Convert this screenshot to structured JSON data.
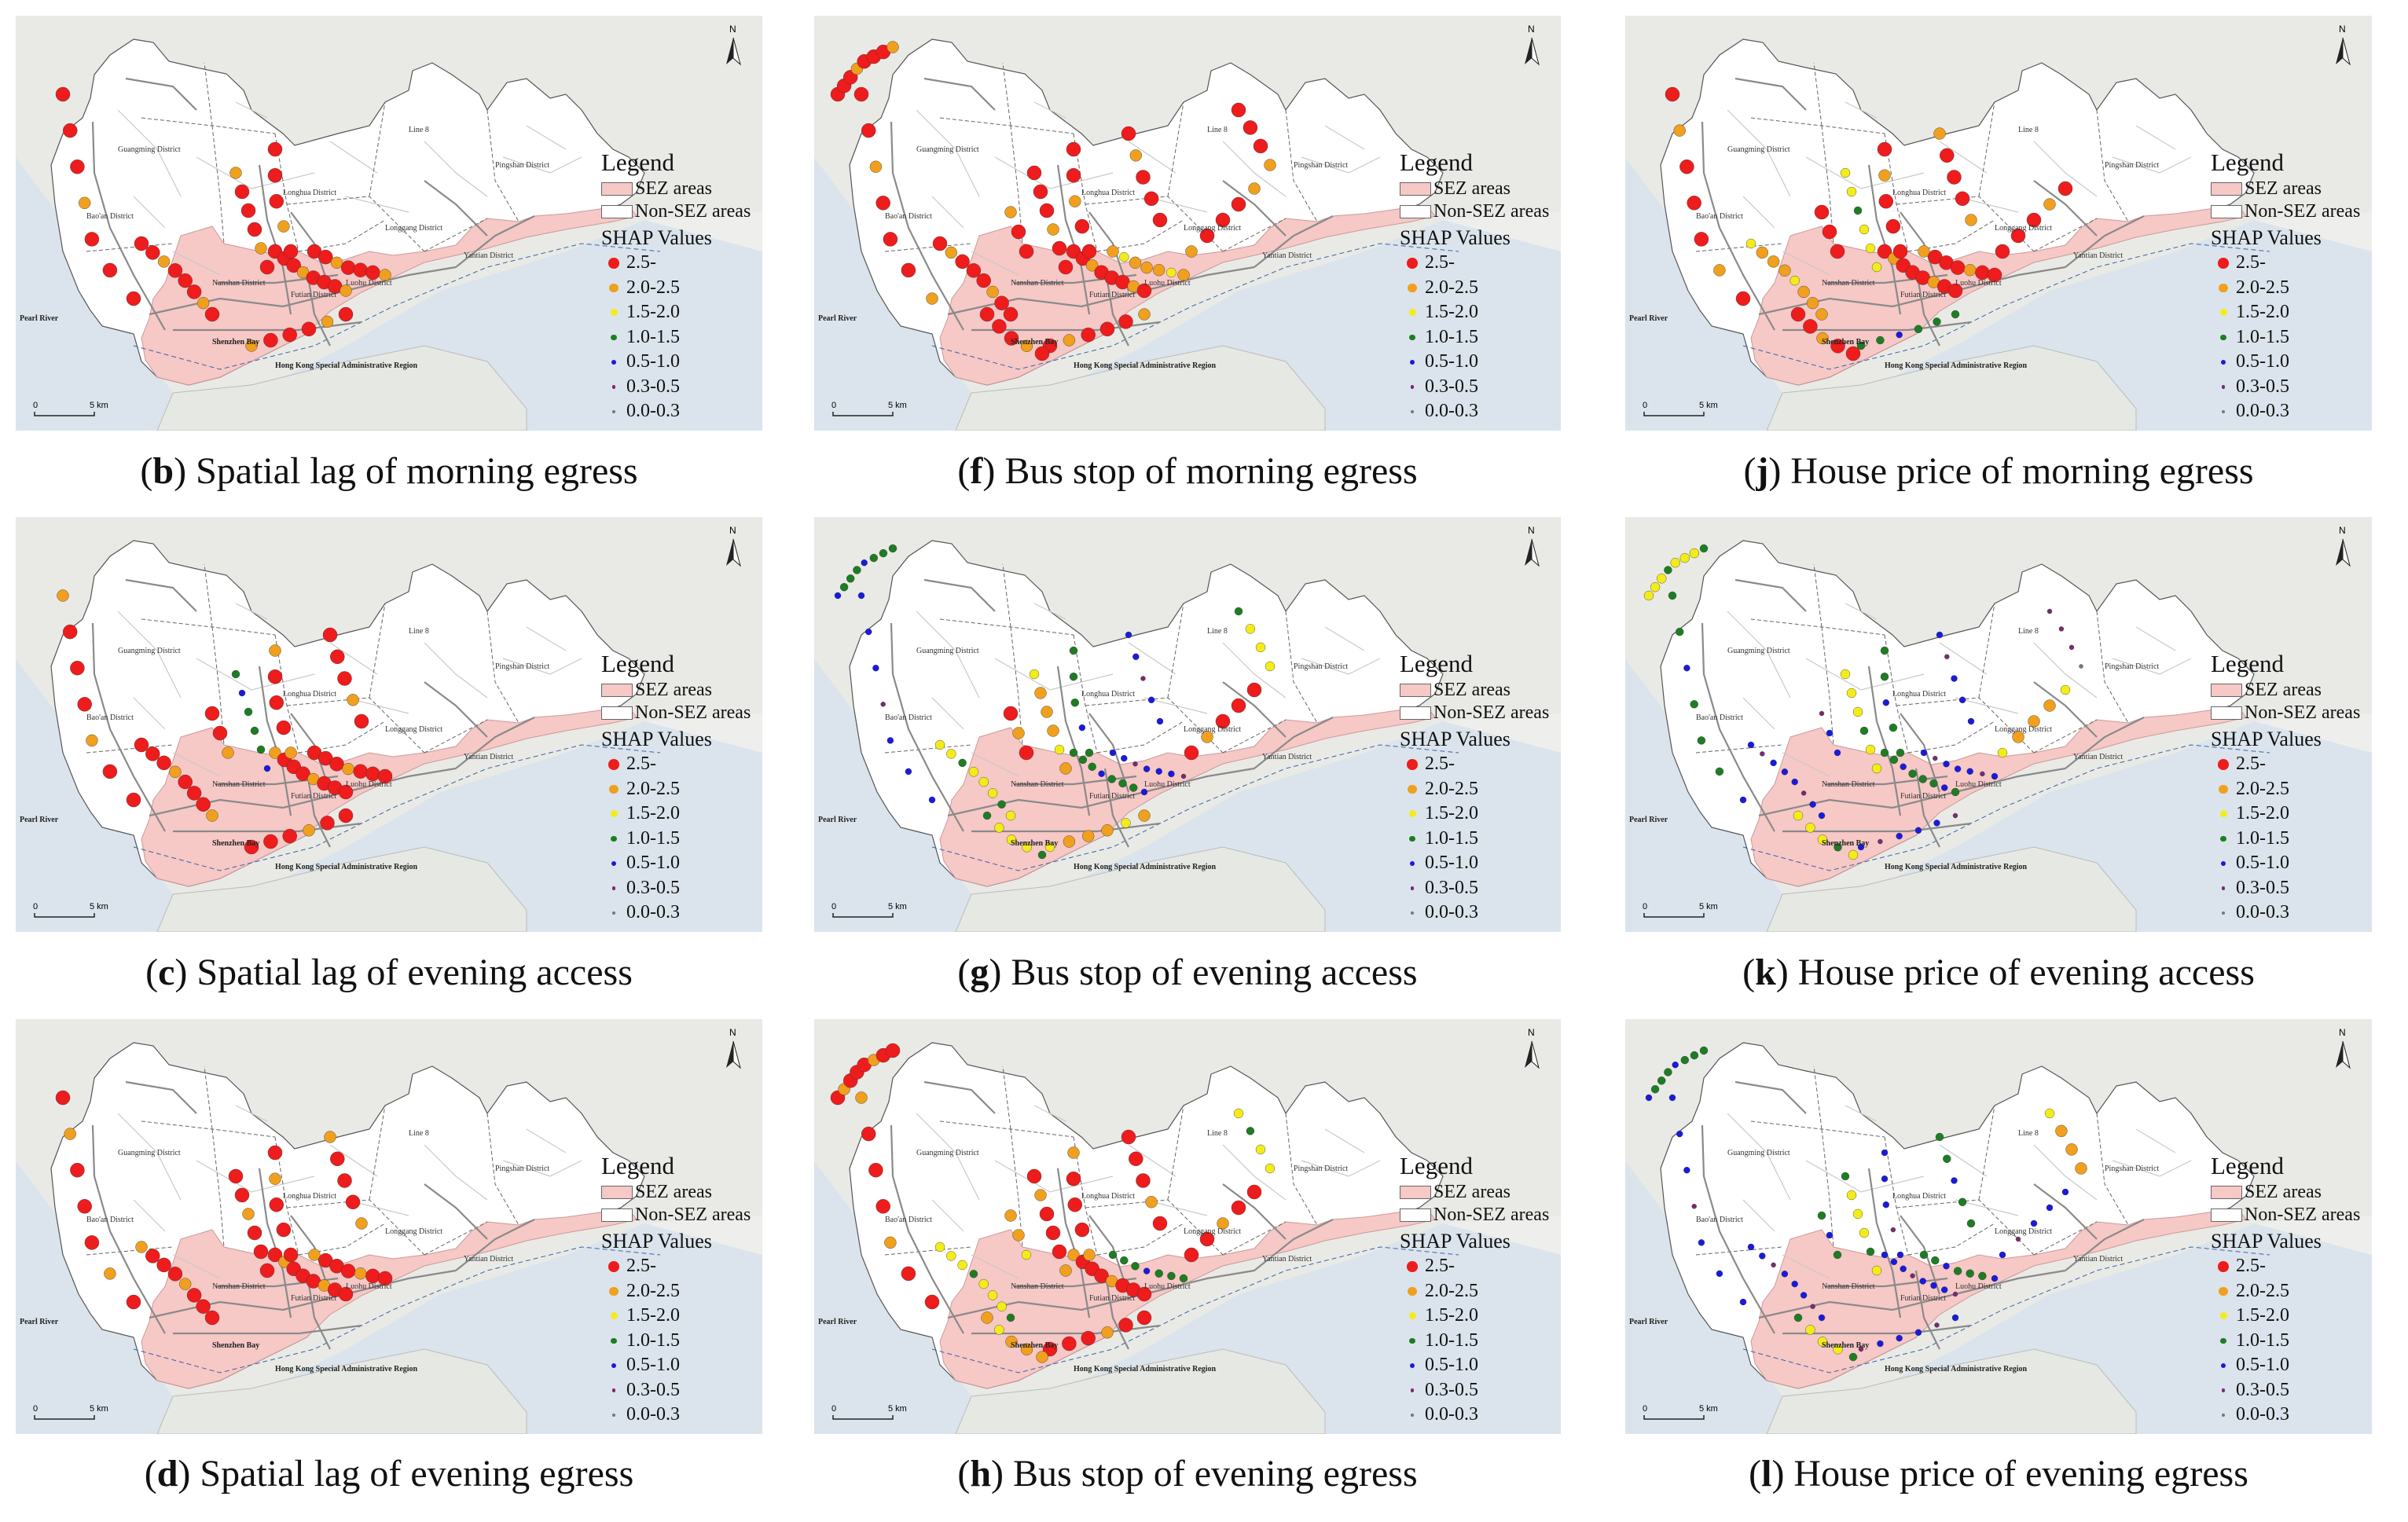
{
  "legend": {
    "title": "Legend",
    "sez_label": "SEZ areas",
    "non_sez_label": "Non-SEZ areas",
    "shap_title": "SHAP Values",
    "classes": [
      {
        "label": "2.5-",
        "color": "#ee1c1c"
      },
      {
        "label": "2.0-2.5",
        "color": "#f0a01e"
      },
      {
        "label": "1.5-2.0",
        "color": "#f3ec1a"
      },
      {
        "label": "1.0-1.5",
        "color": "#1e7d23"
      },
      {
        "label": "0.5-1.0",
        "color": "#1a1adf"
      },
      {
        "label": "0.3-0.5",
        "color": "#7a2a72"
      },
      {
        "label": "0.0-0.3",
        "color": "#777777"
      }
    ],
    "sez_color": "#f6c8c6"
  },
  "map_labels": {
    "guangming": "Guangming District",
    "baoan": "Bao'an District",
    "longhua": "Longhua District",
    "longgang": "Longgang District",
    "pingshan": "Pingshan District",
    "yantian": "Yantian District",
    "luohu": "Luohu District",
    "futian": "Futian District",
    "nanshan": "Nanshan District",
    "pearl_river": "Pearl River",
    "shenzhen_bay": "Shenzhen Bay",
    "hong_kong": "Hong Kong Special Administrative Region",
    "line": "Line 8",
    "north": "N",
    "scale_0": "0",
    "scale_5": "5 km"
  },
  "panels": [
    {
      "letter": "b",
      "title": " Spatial lag of morning egress",
      "profile": [
        0,
        0,
        0,
        0,
        0,
        0,
        0,
        0,
        0,
        0,
        0,
        0,
        0
      ]
    },
    {
      "letter": "f",
      "title": " Bus stop of morning egress",
      "profile": [
        0,
        0,
        0,
        0,
        0,
        0,
        1,
        0,
        0,
        0,
        0,
        0,
        0
      ]
    },
    {
      "letter": "j",
      "title": " House price of morning egress",
      "profile": [
        0,
        0,
        1,
        0,
        2,
        0,
        0,
        3,
        0,
        0,
        0,
        0,
        0
      ]
    },
    {
      "letter": "c",
      "title": " Spatial lag of evening access",
      "profile": [
        0,
        0,
        0,
        0,
        3,
        0,
        0,
        0,
        4,
        0,
        0,
        0,
        0
      ]
    },
    {
      "letter": "g",
      "title": " Bus stop of evening access",
      "profile": [
        3,
        4,
        2,
        0,
        1,
        3,
        4,
        1,
        2,
        3,
        4,
        0,
        2
      ]
    },
    {
      "letter": "k",
      "title": " House price of evening access",
      "profile": [
        2,
        3,
        4,
        4,
        2,
        3,
        4,
        4,
        2,
        3,
        4,
        1,
        5
      ]
    },
    {
      "letter": "d",
      "title": " Spatial lag of evening egress",
      "profile": [
        0,
        0,
        0,
        0,
        0,
        0,
        0,
        0,
        0,
        0,
        0,
        0,
        0
      ]
    },
    {
      "letter": "h",
      "title": " Bus stop of evening egress",
      "profile": [
        0,
        0,
        2,
        1,
        0,
        0,
        3,
        0,
        1,
        0,
        0,
        0,
        2
      ]
    },
    {
      "letter": "l",
      "title": " House price of evening egress",
      "profile": [
        3,
        4,
        4,
        3,
        2,
        4,
        3,
        4,
        2,
        4,
        3,
        4,
        1
      ]
    }
  ]
}
